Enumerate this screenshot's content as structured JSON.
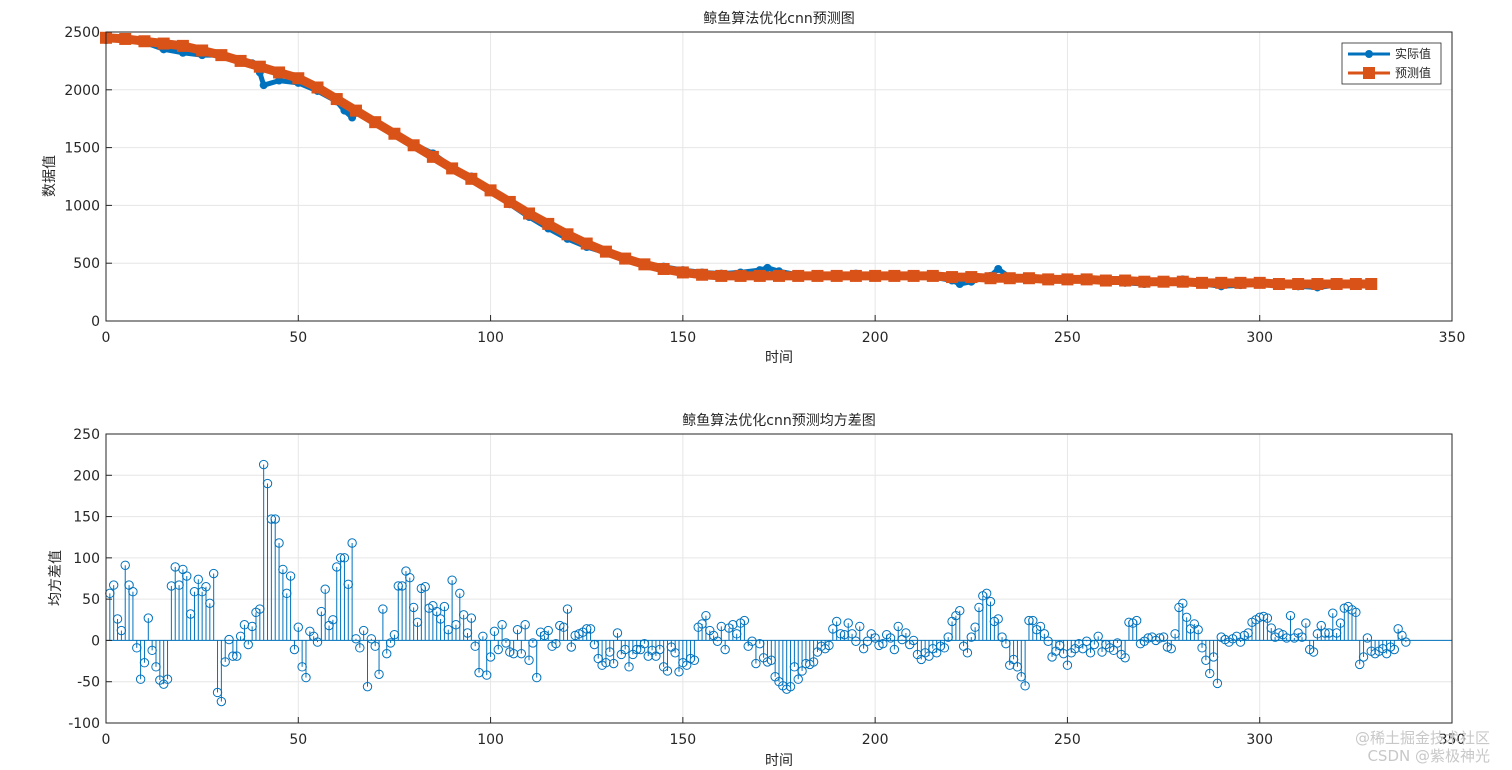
{
  "chart_data": [
    {
      "type": "line",
      "title": "鲸鱼算法优化cnn预测图",
      "xlabel": "时间",
      "ylabel": "数据值",
      "xlim": [
        0,
        350
      ],
      "ylim": [
        0,
        2500
      ],
      "xticks": [
        0,
        50,
        100,
        150,
        200,
        250,
        300,
        350
      ],
      "yticks": [
        0,
        500,
        1000,
        1500,
        2000,
        2500
      ],
      "grid": true,
      "legend_position": "top-right",
      "series": [
        {
          "name": "实际值",
          "color": "#0072BD",
          "marker": "circle",
          "x": [
            0,
            5,
            10,
            15,
            20,
            25,
            30,
            35,
            38,
            40,
            41,
            45,
            50,
            55,
            60,
            62,
            64,
            65,
            70,
            75,
            80,
            85,
            90,
            95,
            100,
            105,
            110,
            115,
            120,
            125,
            130,
            135,
            140,
            145,
            150,
            155,
            160,
            165,
            170,
            172,
            175,
            180,
            185,
            190,
            195,
            200,
            205,
            210,
            215,
            220,
            222,
            225,
            230,
            232,
            235,
            240,
            245,
            250,
            255,
            260,
            265,
            270,
            275,
            280,
            285,
            290,
            295,
            300,
            305,
            310,
            315,
            320,
            325,
            329
          ],
          "values": [
            2430,
            2440,
            2410,
            2350,
            2320,
            2300,
            2300,
            2260,
            2230,
            2150,
            2040,
            2080,
            2060,
            1990,
            1900,
            1820,
            1760,
            1800,
            1720,
            1620,
            1530,
            1450,
            1330,
            1250,
            1130,
            1010,
            900,
            800,
            710,
            640,
            590,
            540,
            500,
            470,
            440,
            420,
            410,
            420,
            440,
            460,
            430,
            400,
            400,
            400,
            410,
            400,
            390,
            390,
            380,
            350,
            320,
            340,
            390,
            450,
            380,
            370,
            360,
            360,
            350,
            340,
            330,
            320,
            330,
            360,
            320,
            300,
            310,
            320,
            310,
            300,
            290,
            310,
            310,
            310
          ]
        },
        {
          "name": "预测值",
          "color": "#D95319",
          "marker": "square",
          "x": [
            0,
            5,
            10,
            15,
            20,
            25,
            30,
            35,
            40,
            45,
            50,
            55,
            60,
            65,
            70,
            75,
            80,
            85,
            90,
            95,
            100,
            105,
            110,
            115,
            120,
            125,
            130,
            135,
            140,
            145,
            150,
            155,
            160,
            165,
            170,
            175,
            180,
            185,
            190,
            195,
            200,
            205,
            210,
            215,
            220,
            225,
            230,
            235,
            240,
            245,
            250,
            255,
            260,
            265,
            270,
            275,
            280,
            285,
            290,
            295,
            300,
            305,
            310,
            315,
            320,
            325,
            329
          ],
          "values": [
            2450,
            2440,
            2420,
            2400,
            2380,
            2340,
            2300,
            2250,
            2200,
            2150,
            2100,
            2020,
            1920,
            1820,
            1720,
            1620,
            1520,
            1420,
            1320,
            1230,
            1130,
            1030,
            930,
            840,
            750,
            670,
            600,
            540,
            490,
            450,
            420,
            400,
            390,
            390,
            390,
            390,
            390,
            390,
            390,
            390,
            390,
            390,
            390,
            390,
            380,
            380,
            370,
            370,
            370,
            360,
            360,
            360,
            350,
            350,
            340,
            340,
            340,
            330,
            330,
            330,
            330,
            320,
            320,
            320,
            320,
            320,
            320
          ]
        }
      ]
    },
    {
      "type": "stem",
      "title": "鲸鱼算法优化cnn预测均方差图",
      "xlabel": "时间",
      "ylabel": "均方差值",
      "xlim": [
        0,
        350
      ],
      "ylim": [
        -100,
        250
      ],
      "xticks": [
        0,
        50,
        100,
        150,
        200,
        250,
        300,
        350
      ],
      "yticks": [
        -100,
        -50,
        0,
        50,
        100,
        150,
        200,
        250
      ],
      "grid": true,
      "color": "#0072BD",
      "x_start": 1,
      "values": [
        57,
        67,
        26,
        12,
        91,
        67,
        59,
        -9,
        -47,
        -27,
        27,
        -12,
        -32,
        -48,
        -53,
        -47,
        66,
        89,
        67,
        86,
        78,
        32,
        59,
        74,
        59,
        65,
        45,
        81,
        -63,
        -74,
        -26,
        1,
        -19,
        -19,
        5,
        19,
        -5,
        17,
        34,
        38,
        213,
        190,
        147,
        147,
        118,
        86,
        57,
        78,
        -11,
        16,
        -32,
        -45,
        11,
        5,
        -2,
        35,
        62,
        18,
        25,
        89,
        100,
        100,
        68,
        118,
        2,
        -9,
        12,
        -56,
        2,
        -7,
        -41,
        38,
        -16,
        -3,
        7,
        66,
        66,
        84,
        76,
        40,
        22,
        63,
        65,
        39,
        42,
        35,
        26,
        41,
        13,
        73,
        19,
        57,
        31,
        9,
        27,
        -7,
        -39,
        5,
        -42,
        -20,
        11,
        -11,
        19,
        -3,
        -14,
        -16,
        13,
        -16,
        19,
        -24,
        -3,
        -45,
        10,
        6,
        12,
        -7,
        -4,
        18,
        16,
        38,
        -8,
        6,
        8,
        10,
        14,
        14,
        -5,
        -22,
        -30,
        -27,
        -14,
        -28,
        9,
        -17,
        -11,
        -32,
        -17,
        -11,
        -11,
        -4,
        -19,
        -12,
        -19,
        -11,
        -32,
        -37,
        -8,
        -15,
        -38,
        -27,
        -30,
        -22,
        -24,
        16,
        20,
        30,
        12,
        6,
        -1,
        17,
        -11,
        15,
        19,
        8,
        21,
        24,
        -7,
        -1,
        -28,
        -4,
        -21,
        -26,
        -24,
        -44,
        -50,
        -55,
        -59,
        -56,
        -32,
        -47,
        -37,
        -28,
        -29,
        -26,
        -14,
        -7,
        -10,
        -6,
        14,
        23,
        8,
        7,
        21,
        8,
        -1,
        17,
        -10,
        -1,
        8,
        3,
        -6,
        -4,
        7,
        3,
        -11,
        17,
        1,
        9,
        -5,
        0,
        -17,
        -23,
        -15,
        -19,
        -10,
        -15,
        -7,
        -9,
        4,
        23,
        30,
        36,
        -7,
        -15,
        4,
        16,
        40,
        54,
        57,
        47,
        23,
        26,
        4,
        -4,
        -30,
        -23,
        -32,
        -44,
        -55,
        24,
        24,
        13,
        17,
        8,
        -1,
        -20,
        -13,
        -6,
        -16,
        -30,
        -15,
        -10,
        -4,
        -10,
        -1,
        -15,
        -5,
        5,
        -14,
        -5,
        -9,
        -12,
        -3,
        -17,
        -21,
        22,
        21,
        24,
        -4,
        -1,
        3,
        4,
        0,
        3,
        4,
        -8,
        -10,
        8,
        40,
        45,
        28,
        14,
        20,
        13,
        -9,
        -24,
        -40,
        -20,
        -52,
        4,
        1,
        -2,
        2,
        5,
        -2,
        6,
        9,
        22,
        25,
        28,
        29,
        27,
        15,
        4,
        9,
        7,
        3,
        30,
        3,
        9,
        4,
        21,
        -11,
        -14,
        8,
        18,
        9,
        9,
        33,
        9,
        21,
        39,
        41,
        37,
        34,
        -29,
        -20,
        3,
        -13,
        -16,
        -13,
        -10,
        -16,
        -8,
        -11,
        14,
        6,
        -2
      ]
    }
  ],
  "watermark": {
    "line1": "@稀土掘金技术社区",
    "line2": "CSDN @紫极神光"
  }
}
